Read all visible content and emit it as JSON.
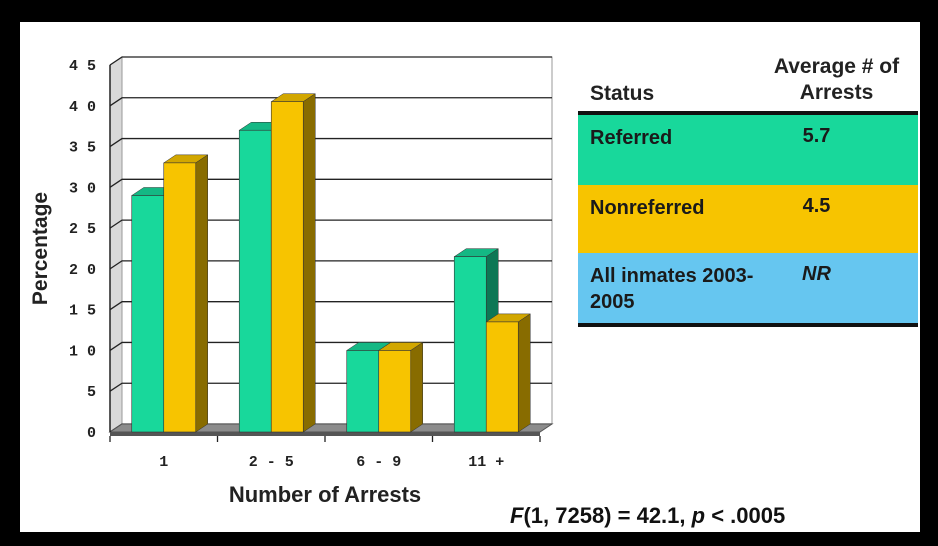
{
  "chart_data": {
    "type": "bar",
    "categories": [
      "1",
      "2 - 5",
      "6 - 9",
      "11 +"
    ],
    "series": [
      {
        "name": "Referred",
        "color": "#18d89b",
        "values": [
          29,
          37,
          10,
          21.5
        ]
      },
      {
        "name": "Nonreferred",
        "color": "#f7c400",
        "values": [
          33,
          40.5,
          10,
          13.5
        ]
      }
    ],
    "ylabel": "Percentage",
    "xlabel": "Number of Arrests",
    "ylim": [
      0,
      45
    ],
    "yticks": [
      "0",
      "5",
      "10",
      "15",
      "20",
      "25",
      "30",
      "35",
      "40",
      "45"
    ],
    "grid": true,
    "style": "3d"
  },
  "table": {
    "headers": {
      "status": "Status",
      "avg": "Average # of Arrests"
    },
    "rows": [
      {
        "status": "Referred",
        "avg": "5.7",
        "color": "#18d89b"
      },
      {
        "status": "Nonreferred",
        "avg": "4.5",
        "color": "#f7c400"
      },
      {
        "status": "All inmates 2003-2005",
        "avg": "NR",
        "color": "#66c6f0"
      }
    ]
  },
  "footnote": {
    "f": "F",
    "df": "(1, 7258) = 42.1, ",
    "p": "p",
    "rest": " < .0005"
  }
}
